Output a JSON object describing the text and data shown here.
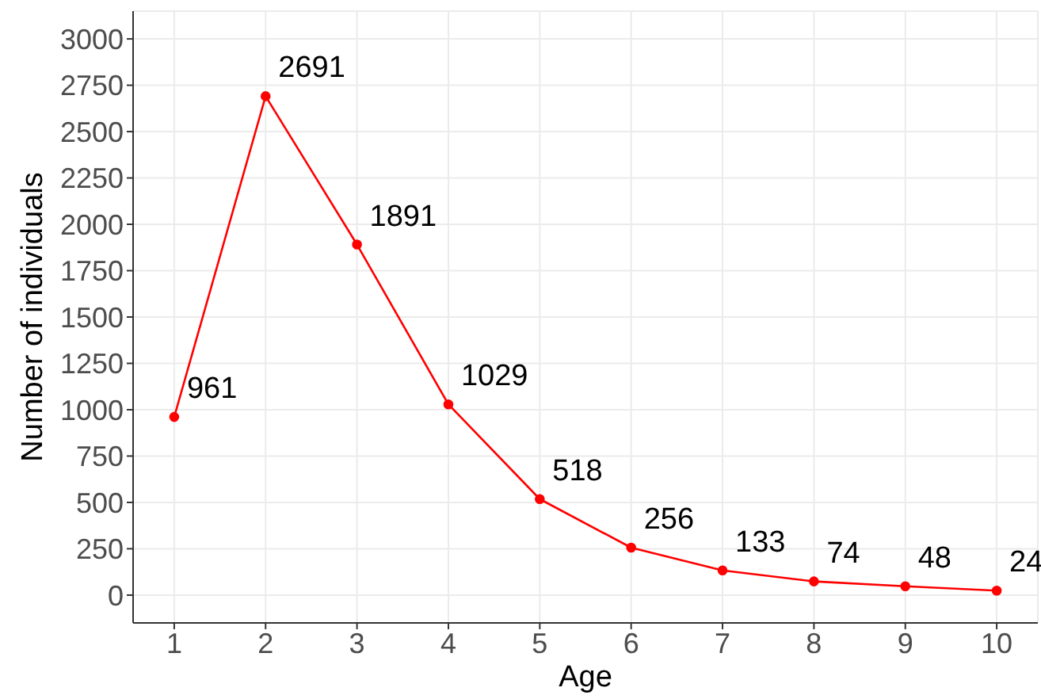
{
  "chart_data": {
    "type": "line",
    "xlabel": "Age",
    "ylabel": "Number of individuals",
    "x": [
      1,
      2,
      3,
      4,
      5,
      6,
      7,
      8,
      9,
      10
    ],
    "series": [
      {
        "color": "#ff0000",
        "values": [
          961,
          2691,
          1891,
          1029,
          518,
          256,
          133,
          74,
          48,
          24
        ]
      }
    ],
    "data_labels": true,
    "marker": "circle",
    "grid": true,
    "xlim": [
      0.55,
      10.45
    ],
    "xticks": [
      1,
      2,
      3,
      4,
      5,
      6,
      7,
      8,
      9,
      10
    ],
    "ylim": [
      -150,
      3150
    ],
    "yticks": [
      0,
      250,
      500,
      750,
      1000,
      1250,
      1500,
      1750,
      2000,
      2250,
      2500,
      2750,
      3000
    ]
  }
}
